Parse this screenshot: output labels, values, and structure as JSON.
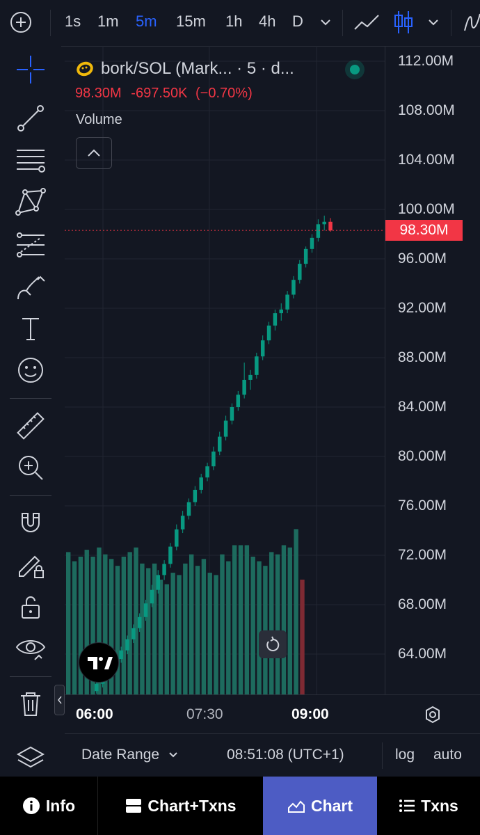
{
  "toolbar": {
    "timeframes": [
      "1s",
      "1m",
      "5m",
      "15m",
      "1h",
      "4h",
      "D"
    ],
    "active_timeframe": "5m"
  },
  "legend": {
    "title": "bork/SOL (Mark... · 5 · d...",
    "last": "98.30M",
    "change": "-697.50K",
    "change_pct": "(−0.70%)",
    "volume_label": "Volume"
  },
  "price_axis": {
    "labels": [
      "112.00M",
      "108.00M",
      "104.00M",
      "100.00M",
      "96.00M",
      "92.00M",
      "88.00M",
      "84.00M",
      "80.00M",
      "76.00M",
      "72.00M",
      "68.00M",
      "64.00M"
    ],
    "current_price": "98.30M"
  },
  "time_axis": {
    "labels": [
      "06:00",
      "07:30",
      "09:00"
    ]
  },
  "range_bar": {
    "date_range": "Date Range",
    "clock": "08:51:08 (UTC+1)",
    "log": "log",
    "auto": "auto"
  },
  "nav": {
    "info": "Info",
    "chart_txns": "Chart+Txns",
    "chart": "Chart",
    "txns": "Txns"
  },
  "colors": {
    "up": "#089981",
    "down": "#f23645",
    "vol_up": "#1d6b5e",
    "vol_down": "#7e2a33",
    "accent": "#2962ff",
    "nav_active": "#4d5cc4"
  },
  "chart_data": {
    "type": "candlestick",
    "interval": "5m",
    "ylim": [
      62,
      113
    ],
    "candles": [
      [
        61.0,
        61.8,
        60.8,
        61.6
      ],
      [
        61.6,
        62.4,
        61.3,
        62.2
      ],
      [
        62.2,
        62.9,
        61.9,
        62.7
      ],
      [
        62.7,
        63.8,
        62.4,
        63.6
      ],
      [
        63.6,
        64.6,
        63.3,
        64.3
      ],
      [
        64.3,
        65.5,
        64.0,
        65.2
      ],
      [
        65.2,
        66.4,
        64.9,
        66.1
      ],
      [
        66.1,
        67.3,
        65.8,
        67.0
      ],
      [
        67.0,
        68.4,
        66.7,
        68.1
      ],
      [
        68.1,
        69.6,
        67.8,
        69.2
      ],
      [
        69.2,
        70.8,
        68.9,
        70.4
      ],
      [
        70.4,
        71.6,
        70.0,
        71.3
      ],
      [
        71.3,
        73.0,
        71.0,
        72.7
      ],
      [
        72.7,
        74.5,
        72.4,
        74.1
      ],
      [
        74.1,
        75.6,
        73.8,
        75.2
      ],
      [
        75.2,
        76.6,
        74.9,
        76.3
      ],
      [
        76.3,
        77.6,
        76.0,
        77.3
      ],
      [
        77.3,
        78.6,
        77.0,
        78.3
      ],
      [
        78.3,
        79.5,
        78.0,
        79.2
      ],
      [
        79.2,
        80.8,
        78.9,
        80.4
      ],
      [
        80.4,
        82.0,
        80.1,
        81.6
      ],
      [
        81.6,
        83.3,
        81.3,
        82.9
      ],
      [
        82.9,
        84.3,
        82.6,
        84.0
      ],
      [
        84.0,
        85.3,
        83.7,
        85.0
      ],
      [
        85.0,
        87.6,
        84.7,
        86.2
      ],
      [
        86.2,
        87.0,
        85.4,
        86.6
      ],
      [
        86.6,
        88.4,
        86.3,
        88.1
      ],
      [
        88.1,
        89.8,
        87.8,
        89.4
      ],
      [
        89.4,
        90.9,
        89.1,
        90.6
      ],
      [
        90.6,
        91.9,
        90.2,
        91.6
      ],
      [
        91.6,
        92.4,
        91.0,
        91.9
      ],
      [
        91.9,
        93.4,
        91.6,
        93.1
      ],
      [
        93.1,
        94.6,
        92.8,
        94.3
      ],
      [
        94.3,
        95.9,
        94.0,
        95.6
      ],
      [
        95.6,
        97.0,
        95.3,
        96.8
      ],
      [
        96.8,
        98.0,
        96.5,
        97.7
      ],
      [
        97.7,
        99.2,
        97.4,
        98.8
      ],
      [
        98.8,
        99.5,
        98.3,
        99.0
      ],
      [
        99.0,
        99.3,
        98.2,
        98.3
      ]
    ],
    "volume": [
      62,
      58,
      60,
      63,
      60,
      64,
      61,
      59,
      56,
      60,
      62,
      64,
      57,
      55,
      57,
      50,
      48,
      53,
      52,
      57,
      61,
      56,
      59,
      53,
      52,
      61,
      58,
      65,
      65,
      65,
      60,
      58,
      56,
      62,
      61,
      65,
      64,
      72,
      50
    ]
  }
}
